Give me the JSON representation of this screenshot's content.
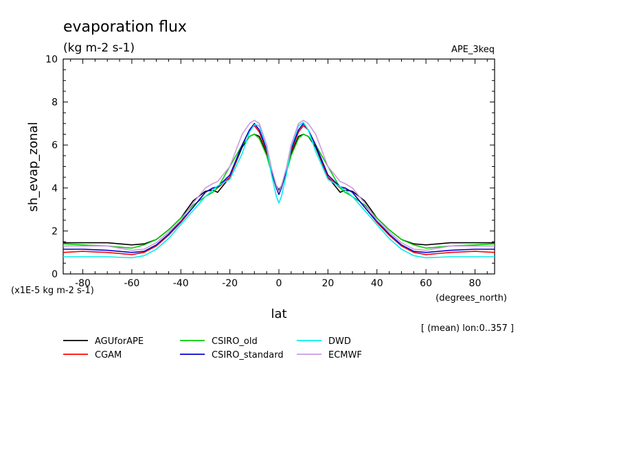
{
  "chart_data": {
    "type": "line",
    "title": "evaporation flux",
    "subtitle": "(kg m-2 s-1)",
    "experiment": "APE_3keq",
    "ylabel": "sh_evap_zonal",
    "yunits": "(x1E-5 kg m-2 s-1)",
    "xlabel": "lat",
    "xunits": "(degrees_north)",
    "note": "[ (mean) lon:0..357 ]",
    "xlim": [
      -88,
      88
    ],
    "ylim": [
      0,
      10
    ],
    "x_ticks": [
      -80,
      -60,
      -40,
      -20,
      0,
      20,
      40,
      60,
      80
    ],
    "x_tick_labels": [
      "-80",
      "-60",
      "-40",
      "-20",
      "0",
      "20",
      "40",
      "60",
      "80"
    ],
    "y_ticks": [
      0,
      2,
      4,
      6,
      8,
      10
    ],
    "y_tick_labels": [
      "0",
      "2",
      "4",
      "6",
      "8",
      "10"
    ],
    "legend_position": "below",
    "x": [
      -88,
      -80,
      -70,
      -60,
      -55,
      -50,
      -45,
      -40,
      -35,
      -30,
      -27,
      -25,
      -20,
      -15,
      -12,
      -10,
      -8,
      -5,
      -3,
      -1,
      0,
      1,
      3,
      5,
      8,
      10,
      12,
      15,
      20,
      25,
      27,
      30,
      35,
      40,
      45,
      50,
      55,
      60,
      70,
      80,
      88
    ],
    "series": [
      {
        "name": "AGUforAPE",
        "color": "#000000",
        "values": [
          1.45,
          1.45,
          1.45,
          1.35,
          1.4,
          1.6,
          2.05,
          2.6,
          3.4,
          3.85,
          3.9,
          3.8,
          4.5,
          5.9,
          6.4,
          6.5,
          6.4,
          5.6,
          4.8,
          4.1,
          3.9,
          4.1,
          4.8,
          5.6,
          6.4,
          6.5,
          6.4,
          5.9,
          4.5,
          3.8,
          3.9,
          3.85,
          3.4,
          2.6,
          2.05,
          1.6,
          1.4,
          1.35,
          1.45,
          1.45,
          1.45
        ]
      },
      {
        "name": "CGAM",
        "color": "#ff0000",
        "values": [
          1.0,
          1.05,
          1.0,
          0.9,
          1.0,
          1.3,
          1.8,
          2.4,
          3.1,
          3.8,
          4.0,
          4.0,
          4.5,
          6.0,
          6.7,
          6.9,
          6.6,
          5.7,
          4.8,
          4.0,
          3.8,
          4.0,
          4.8,
          5.7,
          6.6,
          6.9,
          6.7,
          6.0,
          4.5,
          4.0,
          4.0,
          3.8,
          3.1,
          2.4,
          1.8,
          1.3,
          1.0,
          0.9,
          1.0,
          1.05,
          1.0
        ]
      },
      {
        "name": "CSIRO_old",
        "color": "#00cc00",
        "values": [
          1.4,
          1.35,
          1.3,
          1.2,
          1.35,
          1.6,
          2.05,
          2.6,
          3.2,
          3.6,
          3.8,
          4.0,
          5.0,
          6.0,
          6.4,
          6.5,
          6.3,
          5.5,
          4.7,
          4.0,
          3.7,
          4.0,
          4.7,
          5.5,
          6.3,
          6.5,
          6.4,
          6.0,
          5.0,
          4.0,
          3.8,
          3.6,
          3.2,
          2.6,
          2.05,
          1.6,
          1.35,
          1.2,
          1.3,
          1.35,
          1.4
        ]
      },
      {
        "name": "CSIRO_standard",
        "color": "#0000cc",
        "values": [
          1.15,
          1.15,
          1.1,
          1.0,
          1.05,
          1.35,
          1.85,
          2.45,
          3.1,
          3.8,
          4.0,
          4.05,
          4.6,
          6.0,
          6.7,
          7.0,
          6.7,
          5.8,
          4.8,
          4.0,
          3.7,
          4.0,
          4.8,
          5.8,
          6.7,
          7.0,
          6.7,
          6.0,
          4.6,
          4.05,
          4.0,
          3.8,
          3.1,
          2.45,
          1.85,
          1.35,
          1.05,
          1.0,
          1.1,
          1.15,
          1.15
        ]
      },
      {
        "name": "DWD",
        "color": "#00eeee",
        "values": [
          0.8,
          0.8,
          0.8,
          0.75,
          0.85,
          1.15,
          1.65,
          2.3,
          2.95,
          3.6,
          3.9,
          4.1,
          4.4,
          5.6,
          6.6,
          6.95,
          6.9,
          5.9,
          4.6,
          3.6,
          3.3,
          3.6,
          4.6,
          5.9,
          6.9,
          7.05,
          6.7,
          5.7,
          4.4,
          4.05,
          3.9,
          3.6,
          2.95,
          2.3,
          1.65,
          1.15,
          0.85,
          0.75,
          0.8,
          0.8,
          0.8
        ]
      },
      {
        "name": "ECMWF",
        "color": "#cc99dd",
        "values": [
          1.3,
          1.3,
          1.3,
          1.1,
          1.15,
          1.45,
          1.95,
          2.5,
          3.3,
          4.0,
          4.2,
          4.3,
          5.0,
          6.5,
          7.0,
          7.15,
          7.0,
          6.0,
          4.9,
          4.1,
          3.8,
          4.1,
          4.9,
          6.0,
          7.0,
          7.15,
          7.0,
          6.5,
          5.0,
          4.3,
          4.2,
          4.0,
          3.3,
          2.5,
          1.95,
          1.45,
          1.15,
          1.1,
          1.3,
          1.3,
          1.3
        ]
      }
    ]
  }
}
